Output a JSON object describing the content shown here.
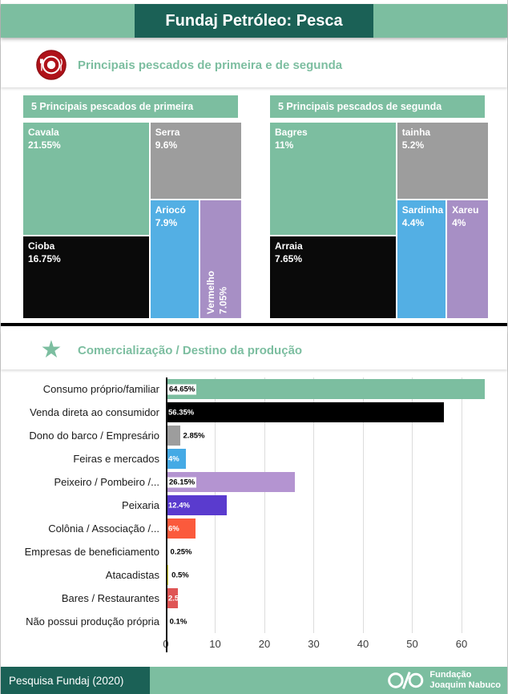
{
  "header": {
    "title": "Fundaj Petróleo: Pesca"
  },
  "sections": {
    "fish": {
      "title": "Principais pescados de primeira e de segunda"
    },
    "commerce": {
      "title": "Comercialização / Destino da produção"
    }
  },
  "colors": {
    "accent_green": "#7cbea0",
    "dark_teal": "#1b6156",
    "gray": "#9d9d9d",
    "black": "#0a0a0a",
    "blue": "#53afe4",
    "purple": "#a78fc5"
  },
  "chart_data": [
    {
      "type": "treemap",
      "title": "5 Principais pescados de primeira",
      "items": [
        {
          "name": "Cavala",
          "value": 21.55,
          "text": "21.55%",
          "color": "#7cbea0"
        },
        {
          "name": "Serra",
          "value": 9.6,
          "text": "9.6%",
          "color": "#9d9d9d"
        },
        {
          "name": "Cioba",
          "value": 16.75,
          "text": "16.75%",
          "color": "#0a0a0a"
        },
        {
          "name": "Ariocó",
          "value": 7.9,
          "text": "7.9%",
          "color": "#53afe4"
        },
        {
          "name": "Vermelho",
          "value": 7.05,
          "text": "7.05%",
          "color": "#a78fc5"
        }
      ]
    },
    {
      "type": "treemap",
      "title": "5 Principais pescados de segunda",
      "items": [
        {
          "name": "Bagres",
          "value": 11,
          "text": "11%",
          "color": "#7cbea0"
        },
        {
          "name": "tainha",
          "value": 5.2,
          "text": "5.2%",
          "color": "#9d9d9d"
        },
        {
          "name": "Arraia",
          "value": 7.65,
          "text": "7.65%",
          "color": "#0a0a0a"
        },
        {
          "name": "Sardinha",
          "value": 4.4,
          "text": "4.4%",
          "color": "#53afe4"
        },
        {
          "name": "Xareu",
          "value": 4,
          "text": "4%",
          "color": "#a78fc5"
        }
      ]
    },
    {
      "type": "bar",
      "orientation": "horizontal",
      "title": "Comercialização / Destino da produção",
      "xlim": [
        0,
        67
      ],
      "xticks": [
        0,
        10,
        20,
        30,
        40,
        50,
        60
      ],
      "grid": true,
      "items": [
        {
          "label": "Consumo próprio/familiar",
          "value": 64.65,
          "text": "64.65%",
          "color": "#7cbea0",
          "label_style": "chip"
        },
        {
          "label": "Venda direta ao consumidor",
          "value": 56.35,
          "text": "56.35%",
          "color": "#000000",
          "label_style": "light"
        },
        {
          "label": "Dono do barco / Empresário",
          "value": 2.85,
          "text": "2.85%",
          "color": "#9d9d9d",
          "label_style": "out"
        },
        {
          "label": "Feiras e mercados",
          "value": 4,
          "text": "4%",
          "color": "#45aae5",
          "label_style": "light"
        },
        {
          "label": "Peixeiro / Pombeiro /...",
          "value": 26.15,
          "text": "26.15%",
          "color": "#b494d1",
          "label_style": "chip"
        },
        {
          "label": "Peixaria",
          "value": 12.4,
          "text": "12.4%",
          "color": "#5a3bce",
          "label_style": "light"
        },
        {
          "label": "Colônia / Associação /...",
          "value": 6,
          "text": "6%",
          "color": "#fb5a3c",
          "label_style": "light"
        },
        {
          "label": "Empresas de beneficiamento",
          "value": 0.25,
          "text": "0.25%",
          "color": "#df3e3e",
          "label_style": "out"
        },
        {
          "label": "Atacadistas",
          "value": 0.5,
          "text": "0.5%",
          "color": "#efe93d",
          "label_style": "out"
        },
        {
          "label": "Bares / Restaurantes",
          "value": 2.5,
          "text": "2.5%",
          "color": "#df5555",
          "label_style": "light"
        },
        {
          "label": "Não possui produção própria",
          "value": 0.1,
          "text": "0.1%",
          "color": "#9d9d9d",
          "label_style": "out"
        }
      ]
    }
  ],
  "footer": {
    "left": "Pesquisa Fundaj (2020)",
    "brand": {
      "line1": "Fundação",
      "line2": "Joaquim Nabuco"
    }
  }
}
